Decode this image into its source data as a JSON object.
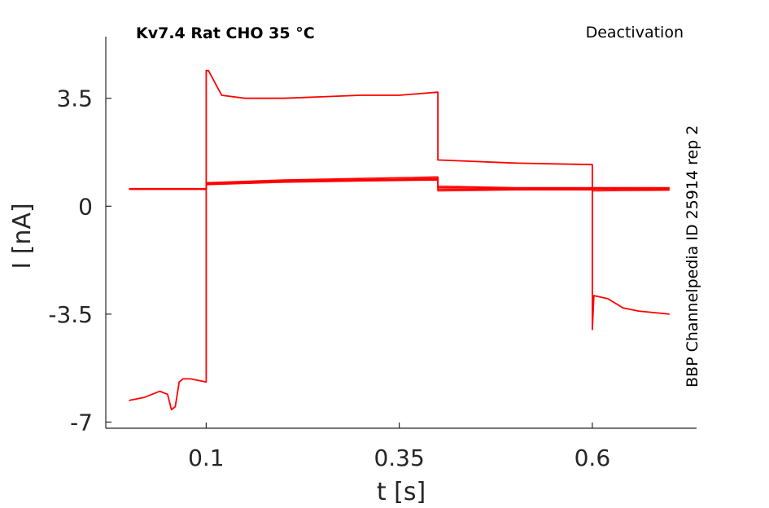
{
  "chart_data": {
    "type": "line",
    "title": "Kv7.4  Rat  CHO  35 °C",
    "subtitle": "Deactivation",
    "side_note": "BBP Channelpedia ID 25914 rep 2",
    "xlabel": "t [s]",
    "ylabel": "I [nA]",
    "xlim": [
      -0.03,
      0.735
    ],
    "ylim": [
      -7.2,
      5.5
    ],
    "xticks": [
      0.1,
      0.35,
      0.6
    ],
    "xtick_labels": [
      "0.1",
      "0.35",
      "0.6"
    ],
    "yticks": [
      -7,
      -3.5,
      0,
      3.5
    ],
    "ytick_labels": [
      "-7",
      "-3.5",
      "0",
      "3.5"
    ],
    "grid": false,
    "line_color": "#ff0000",
    "series": [
      {
        "x": [
          0.0,
          0.02,
          0.04,
          0.05,
          0.055,
          0.06,
          0.065,
          0.07,
          0.08,
          0.1,
          0.1,
          0.103,
          0.12,
          0.15,
          0.2,
          0.25,
          0.3,
          0.35,
          0.4,
          0.4,
          0.45,
          0.5,
          0.6,
          0.6,
          0.602,
          0.62,
          0.64,
          0.66,
          0.7
        ],
        "y": [
          -6.3,
          -6.2,
          -6.0,
          -6.1,
          -6.6,
          -6.5,
          -5.7,
          -5.6,
          -5.6,
          -5.7,
          4.4,
          4.4,
          3.6,
          3.5,
          3.5,
          3.55,
          3.6,
          3.6,
          3.7,
          1.5,
          1.45,
          1.4,
          1.35,
          -4.0,
          -2.9,
          -3.0,
          -3.3,
          -3.4,
          -3.5
        ]
      },
      {
        "x": [
          0.0,
          0.1,
          0.1,
          0.2,
          0.3,
          0.4,
          0.4,
          0.5,
          0.6,
          0.6,
          0.7
        ],
        "y": [
          0.57,
          0.57,
          0.76,
          0.85,
          0.9,
          0.95,
          0.65,
          0.6,
          0.6,
          0.5,
          0.52
        ]
      },
      {
        "x": [
          0.0,
          0.1,
          0.1,
          0.2,
          0.3,
          0.4,
          0.4,
          0.5,
          0.6,
          0.6,
          0.7
        ],
        "y": [
          0.56,
          0.56,
          0.74,
          0.82,
          0.86,
          0.9,
          0.6,
          0.57,
          0.57,
          0.55,
          0.55
        ]
      },
      {
        "x": [
          0.0,
          0.1,
          0.1,
          0.2,
          0.3,
          0.4,
          0.4,
          0.5,
          0.6,
          0.6,
          0.7
        ],
        "y": [
          0.55,
          0.55,
          0.72,
          0.8,
          0.84,
          0.87,
          0.55,
          0.55,
          0.55,
          0.58,
          0.58
        ]
      },
      {
        "x": [
          0.0,
          0.1,
          0.1,
          0.2,
          0.3,
          0.4,
          0.4,
          0.5,
          0.6,
          0.6,
          0.7
        ],
        "y": [
          0.55,
          0.55,
          0.7,
          0.78,
          0.82,
          0.85,
          0.5,
          0.53,
          0.53,
          0.6,
          0.6
        ]
      }
    ]
  }
}
